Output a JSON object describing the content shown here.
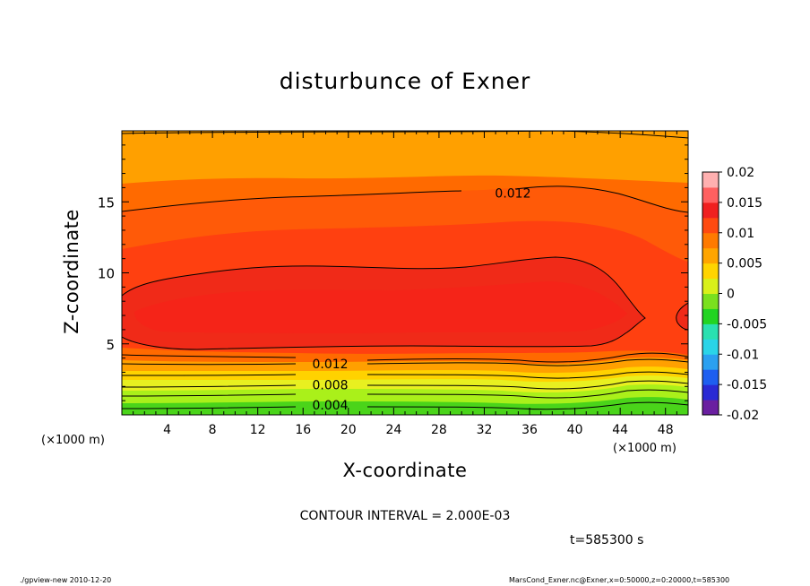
{
  "title": "disturbunce of Exner",
  "xlabel": "X-coordinate",
  "ylabel": "Z-coordinate",
  "x_unit_left": "(×1000 m)",
  "x_unit_right": "(×1000 m)",
  "contour_interval": "CONTOUR INTERVAL = 2.000E-03",
  "time": "t=585300 s",
  "footer_left": "./gpview-new   2010-12-20",
  "footer_right": "MarsCond_Exner.nc@Exner,x=0:50000,z=0:20000,t=585300",
  "chart_data": {
    "type": "heatmap",
    "title": "disturbunce of Exner",
    "xlabel": "X-coordinate",
    "ylabel": "Z-coordinate",
    "xlim": [
      0,
      50
    ],
    "ylim": [
      0,
      20
    ],
    "x_ticks": [
      4,
      8,
      12,
      16,
      20,
      24,
      28,
      32,
      36,
      40,
      44,
      48
    ],
    "y_ticks": [
      5,
      10,
      15
    ],
    "contour_labels": [
      {
        "value": "0.012",
        "x": 32,
        "z": 15.6
      },
      {
        "value": "0.012",
        "x": 18,
        "z": 3.6
      },
      {
        "value": "0.008",
        "x": 18,
        "z": 2.1
      },
      {
        "value": "0.004",
        "x": 18,
        "z": 0.7
      }
    ],
    "colorbar": {
      "min": -0.02,
      "max": 0.02,
      "tick_labels": [
        "0.02",
        "0.015",
        "0.01",
        "0.005",
        "0",
        "-0.005",
        "-0.01",
        "-0.015",
        "-0.02"
      ],
      "colors": [
        "#6a1fa0",
        "#2a2ad4",
        "#1e5ff0",
        "#2aa0f0",
        "#2ad4e8",
        "#2ae0b0",
        "#22d422",
        "#7ae01e",
        "#d8f01a",
        "#ffd400",
        "#ffa500",
        "#ff7a00",
        "#ff4a10",
        "#f02020",
        "#ff6060",
        "#ffb0b0"
      ]
    },
    "levels": [
      {
        "name": "band-0.002-0.004",
        "color": "#4ad41a"
      },
      {
        "name": "band-0.004-0.006",
        "color": "#aaf01a"
      },
      {
        "name": "band-0.006-0.008",
        "color": "#e8f020"
      },
      {
        "name": "band-0.008-0.010",
        "color": "#ffd200"
      },
      {
        "name": "band-0.010-0.012",
        "color": "#ffa000"
      },
      {
        "name": "band-0.012-0.014",
        "color": "#ff6a00"
      },
      {
        "name": "band-0.014-0.016",
        "color": "#ff4010"
      },
      {
        "name": "band-0.016-0.018",
        "color": "#f52418"
      }
    ]
  }
}
